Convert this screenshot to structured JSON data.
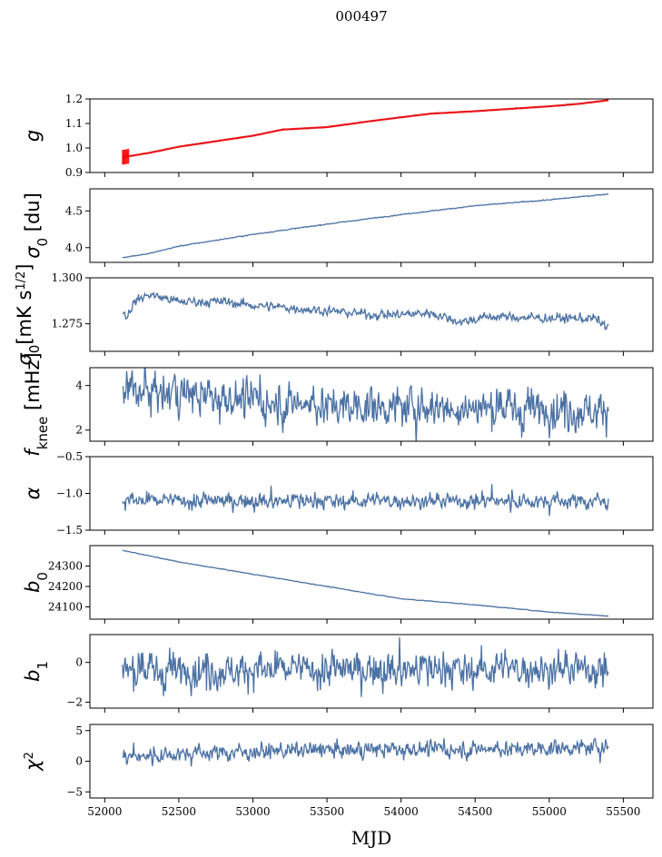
{
  "figure": {
    "title": "000497",
    "xlabel": "MJD"
  },
  "chart_data": {
    "type": "line",
    "xlim": [
      51900,
      55700
    ],
    "xticks": [
      52000,
      52500,
      53000,
      53500,
      54000,
      54500,
      55000,
      55500
    ],
    "series_color": "#4c72a4",
    "fit_color": "#ff0000",
    "panels": [
      {
        "id": "g",
        "ylabel": "g",
        "ylim": [
          0.9,
          1.2
        ],
        "yticks": [
          0.9,
          1.0,
          1.1,
          1.2
        ],
        "ytick_labels": [
          "0.9",
          "1.0",
          "1.1",
          "1.2"
        ],
        "noise": 0.001,
        "spike": 0.0,
        "trend": [
          [
            52100,
            0.96
          ],
          [
            52300,
            0.98
          ],
          [
            52500,
            1.005
          ],
          [
            53000,
            1.05
          ],
          [
            53200,
            1.075
          ],
          [
            53500,
            1.085
          ],
          [
            53800,
            1.11
          ],
          [
            54000,
            1.125
          ],
          [
            54200,
            1.14
          ],
          [
            54500,
            1.15
          ],
          [
            55000,
            1.17
          ],
          [
            55200,
            1.18
          ],
          [
            55400,
            1.195
          ]
        ],
        "fit": true
      },
      {
        "id": "sigma0_du",
        "ylabel": "σ0 [du]",
        "ylim": [
          3.8,
          4.8
        ],
        "yticks": [
          4.0,
          4.5
        ],
        "ytick_labels": [
          "4.0",
          "4.5"
        ],
        "noise": 0.003,
        "spike": 0.0,
        "trend": [
          [
            52100,
            3.86
          ],
          [
            52300,
            3.92
          ],
          [
            52500,
            4.02
          ],
          [
            53000,
            4.18
          ],
          [
            53500,
            4.32
          ],
          [
            54000,
            4.45
          ],
          [
            54500,
            4.57
          ],
          [
            55000,
            4.65
          ],
          [
            55400,
            4.73
          ]
        ]
      },
      {
        "id": "sigma0_mk",
        "ylabel": "σ0[mK s^1/2]",
        "ylim": [
          1.26,
          1.3
        ],
        "yticks": [
          1.275,
          1.3
        ],
        "ytick_labels": [
          "1.275",
          "1.300"
        ],
        "noise": 0.0012,
        "spike": 0.0,
        "trend": [
          [
            52100,
            1.283
          ],
          [
            52150,
            1.279
          ],
          [
            52200,
            1.287
          ],
          [
            52300,
            1.291
          ],
          [
            52500,
            1.287
          ],
          [
            52800,
            1.287
          ],
          [
            53000,
            1.285
          ],
          [
            53200,
            1.284
          ],
          [
            53500,
            1.282
          ],
          [
            53800,
            1.28
          ],
          [
            54000,
            1.28
          ],
          [
            54200,
            1.281
          ],
          [
            54400,
            1.276
          ],
          [
            54600,
            1.279
          ],
          [
            55000,
            1.278
          ],
          [
            55300,
            1.278
          ],
          [
            55400,
            1.273
          ]
        ]
      },
      {
        "id": "fknee",
        "ylabel": "fknee [mHz]",
        "ylim": [
          1.5,
          4.8
        ],
        "yticks": [
          2,
          4
        ],
        "ytick_labels": [
          "2",
          "4"
        ],
        "noise": 0.42,
        "spike": 0.6,
        "trend": [
          [
            52100,
            3.9
          ],
          [
            52500,
            3.6
          ],
          [
            53000,
            3.3
          ],
          [
            53500,
            3.15
          ],
          [
            54000,
            3.05
          ],
          [
            54500,
            3.0
          ],
          [
            55000,
            2.95
          ],
          [
            55400,
            2.9
          ]
        ]
      },
      {
        "id": "alpha",
        "ylabel": "α",
        "ylim": [
          -1.5,
          -0.5
        ],
        "yticks": [
          -1.5,
          -1.0,
          -0.5
        ],
        "ytick_labels": [
          "−1.5",
          "−1.0",
          "−0.5"
        ],
        "noise": 0.05,
        "spike": 0.1,
        "trend": [
          [
            52100,
            -1.1
          ],
          [
            55400,
            -1.1
          ]
        ]
      },
      {
        "id": "b0",
        "ylabel": "b0",
        "ylim": [
          24040,
          24400
        ],
        "yticks": [
          24100,
          24200,
          24300
        ],
        "ytick_labels": [
          "24100",
          "24200",
          "24300"
        ],
        "noise": 0.8,
        "spike": 0.0,
        "trend": [
          [
            52100,
            24380
          ],
          [
            52300,
            24350
          ],
          [
            52500,
            24320
          ],
          [
            53000,
            24260
          ],
          [
            53500,
            24200
          ],
          [
            54000,
            24140
          ],
          [
            54500,
            24110
          ],
          [
            55000,
            24075
          ],
          [
            55400,
            24055
          ]
        ]
      },
      {
        "id": "b1",
        "ylabel": "b1",
        "ylim": [
          -2.3,
          1.4
        ],
        "yticks": [
          -2,
          0
        ],
        "ytick_labels": [
          "−2",
          "0"
        ],
        "noise": 0.42,
        "spike": 0.75,
        "trend": [
          [
            52100,
            -0.4
          ],
          [
            55400,
            -0.3
          ]
        ]
      },
      {
        "id": "chi2",
        "ylabel": "χ2",
        "ylim": [
          -6,
          6
        ],
        "yticks": [
          -5,
          0,
          5
        ],
        "ytick_labels": [
          "−5",
          "0",
          "5"
        ],
        "noise": 0.62,
        "spike": 0.9,
        "trend": [
          [
            52100,
            0.5
          ],
          [
            52500,
            1.3
          ],
          [
            53000,
            1.6
          ],
          [
            54000,
            1.9
          ],
          [
            54500,
            2.0
          ],
          [
            55400,
            2.3
          ]
        ]
      }
    ]
  }
}
